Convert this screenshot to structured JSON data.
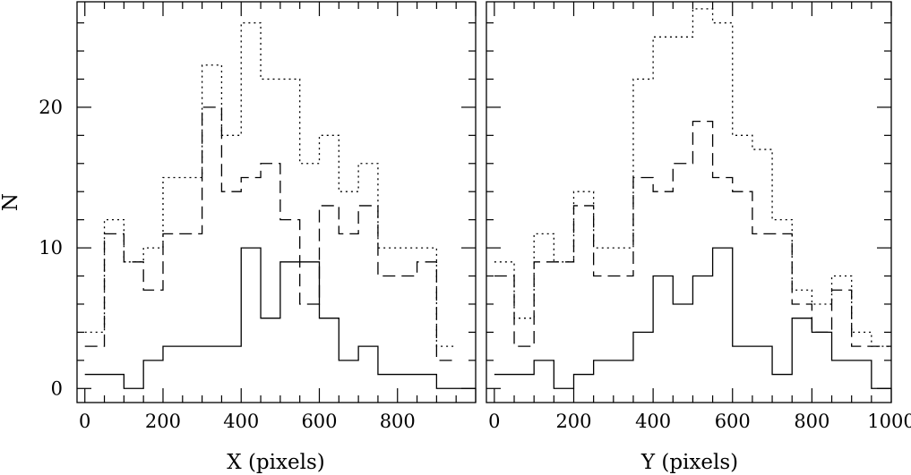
{
  "chart_data": [
    {
      "type": "histogram",
      "xlabel": "X (pixels)",
      "ylabel": "N",
      "xlim": [
        -20,
        1000
      ],
      "ylim": [
        -1,
        27.5
      ],
      "xticks": [
        0,
        200,
        400,
        600,
        800
      ],
      "xtick_labels": [
        "0",
        "200",
        "400",
        "600",
        "800"
      ],
      "yticks": [
        0,
        10,
        20
      ],
      "ytick_labels": [
        "0",
        "10",
        "20"
      ],
      "series": [
        {
          "line_style": "solid",
          "bin_edges": [
            0,
            50,
            100,
            150,
            200,
            250,
            300,
            350,
            400,
            450,
            500,
            550,
            600,
            650,
            700,
            750,
            800,
            850,
            900,
            950,
            1000
          ],
          "counts": [
            1,
            1,
            0,
            2,
            3,
            3,
            3,
            3,
            10,
            5,
            9,
            9,
            5,
            2,
            3,
            1,
            1,
            1,
            0,
            0
          ]
        },
        {
          "line_style": "dashed",
          "bin_edges": [
            0,
            50,
            100,
            150,
            200,
            250,
            300,
            350,
            400,
            450,
            500,
            550,
            600,
            650,
            700,
            750,
            800,
            850,
            900,
            950
          ],
          "counts": [
            3,
            11,
            9,
            7,
            11,
            11,
            20,
            14,
            15,
            16,
            12,
            6,
            13,
            11,
            13,
            8,
            8,
            9,
            2
          ]
        },
        {
          "line_style": "dotted",
          "bin_edges": [
            0,
            50,
            100,
            150,
            200,
            250,
            300,
            350,
            400,
            450,
            500,
            550,
            600,
            650,
            700,
            750,
            800,
            850,
            900,
            950
          ],
          "counts": [
            4,
            12,
            9,
            10,
            15,
            15,
            23,
            18,
            26,
            22,
            22,
            16,
            18,
            14,
            16,
            10,
            10,
            10,
            3
          ]
        }
      ]
    },
    {
      "type": "histogram",
      "xlabel": "Y (pixels)",
      "ylabel": "",
      "xlim": [
        -20,
        1000
      ],
      "ylim": [
        -1,
        27.5
      ],
      "xticks": [
        0,
        200,
        400,
        600,
        800,
        1000
      ],
      "xtick_labels": [
        "0",
        "200",
        "400",
        "600",
        "800",
        "1000"
      ],
      "yticks": [
        0,
        10,
        20
      ],
      "ytick_labels": [],
      "series": [
        {
          "line_style": "solid",
          "bin_edges": [
            0,
            50,
            100,
            150,
            200,
            250,
            300,
            350,
            400,
            450,
            500,
            550,
            600,
            650,
            700,
            750,
            800,
            850,
            900,
            950,
            1000
          ],
          "counts": [
            1,
            1,
            2,
            0,
            1,
            2,
            2,
            4,
            8,
            6,
            8,
            10,
            3,
            3,
            1,
            5,
            4,
            2,
            2,
            0
          ]
        },
        {
          "line_style": "dashed",
          "bin_edges": [
            0,
            50,
            100,
            150,
            200,
            250,
            300,
            350,
            400,
            450,
            500,
            550,
            600,
            650,
            700,
            750,
            800,
            850,
            900,
            950,
            1000
          ],
          "counts": [
            8,
            3,
            9,
            9,
            13,
            8,
            8,
            15,
            14,
            16,
            19,
            15,
            14,
            11,
            11,
            6,
            4,
            7,
            3,
            3
          ]
        },
        {
          "line_style": "dotted",
          "bin_edges": [
            0,
            50,
            100,
            150,
            200,
            250,
            300,
            350,
            400,
            450,
            500,
            550,
            600,
            650,
            700,
            750,
            800,
            850,
            900,
            950,
            1000
          ],
          "counts": [
            9,
            5,
            11,
            9,
            14,
            10,
            10,
            22,
            25,
            25,
            27,
            26,
            18,
            17,
            12,
            7,
            6,
            8,
            4,
            3
          ]
        }
      ]
    }
  ],
  "colors": {
    "ink": "#000000",
    "background": "#ffffff"
  }
}
